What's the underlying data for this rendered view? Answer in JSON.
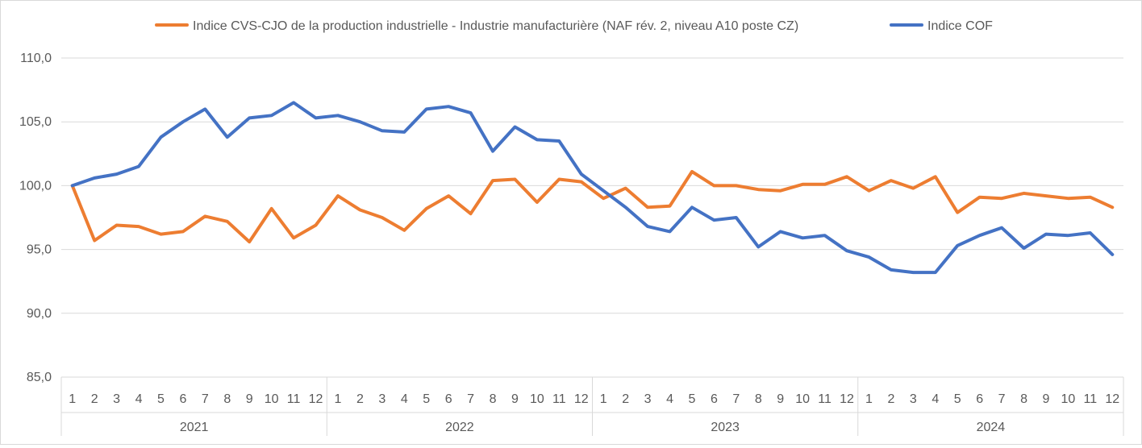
{
  "chart_data": {
    "type": "line",
    "title": "",
    "xlabel": "",
    "ylabel": "",
    "ylim": [
      85,
      110
    ],
    "yticks": [
      "85,0",
      "90,0",
      "95,0",
      "100,0",
      "105,0",
      "110,0"
    ],
    "grid": true,
    "legend_position": "top",
    "months": [
      "1",
      "2",
      "3",
      "4",
      "5",
      "6",
      "7",
      "8",
      "9",
      "10",
      "11",
      "12"
    ],
    "years": [
      "2021",
      "2022",
      "2023",
      "2024"
    ],
    "series": [
      {
        "name": "Indice CVS-CJO de la production industrielle - Industrie manufacturière (NAF rév. 2, niveau A10 poste CZ)",
        "color": "#ed7d31",
        "values": [
          100.0,
          95.7,
          96.9,
          96.8,
          96.2,
          96.4,
          97.6,
          97.2,
          95.6,
          98.2,
          95.9,
          96.9,
          99.2,
          98.1,
          97.5,
          96.5,
          98.2,
          99.2,
          97.8,
          100.4,
          100.5,
          98.7,
          100.5,
          100.3,
          99.0,
          99.8,
          98.3,
          98.4,
          101.1,
          100.0,
          100.0,
          99.7,
          99.6,
          100.1,
          100.1,
          100.7,
          99.6,
          100.4,
          99.8,
          100.7,
          97.9,
          99.1,
          99.0,
          99.4,
          99.2,
          99.0,
          99.1,
          98.3
        ]
      },
      {
        "name": "Indice COF",
        "color": "#4472c4",
        "values": [
          100.0,
          100.6,
          100.9,
          101.5,
          103.8,
          105.0,
          106.0,
          103.8,
          105.3,
          105.5,
          106.5,
          105.3,
          105.5,
          105.0,
          104.3,
          104.2,
          106.0,
          106.2,
          105.7,
          102.7,
          104.6,
          103.6,
          103.5,
          100.9,
          99.6,
          98.3,
          96.8,
          96.4,
          98.3,
          97.3,
          97.5,
          95.2,
          96.4,
          95.9,
          96.1,
          94.9,
          94.4,
          93.4,
          93.2,
          93.2,
          95.3,
          96.1,
          96.7,
          95.1,
          96.2,
          96.1,
          96.3,
          94.6
        ]
      }
    ]
  }
}
